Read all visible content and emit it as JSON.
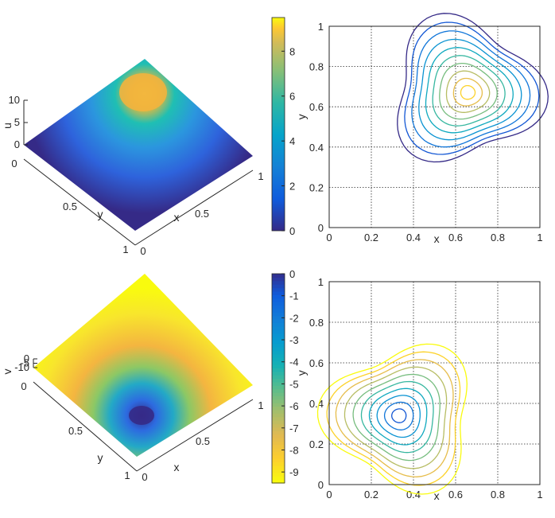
{
  "chart_data": [
    {
      "type": "surface",
      "zlabel": "u",
      "xlabel": "x",
      "ylabel": "y",
      "zticks": [
        "10",
        "5",
        "0"
      ],
      "xticks": [
        "0",
        "0.5",
        "1"
      ],
      "yticks": [
        "0",
        "0.5",
        "1"
      ],
      "xlim": [
        0,
        1
      ],
      "ylim": [
        0,
        1
      ],
      "zlim": [
        0,
        10
      ],
      "peak": {
        "x": 0.67,
        "y": 0.67,
        "value": 9.5
      },
      "colormap": "parula"
    },
    {
      "type": "colorbar",
      "ticks": [
        "0",
        "2",
        "4",
        "6",
        "8"
      ],
      "tick_values": [
        0,
        2,
        4,
        6,
        8
      ],
      "range": [
        0,
        9.5
      ]
    },
    {
      "type": "contour",
      "xlabel": "x",
      "ylabel": "y",
      "xticks": [
        "0",
        "0.2",
        "0.4",
        "0.6",
        "0.8",
        "1"
      ],
      "yticks": [
        "0",
        "0.2",
        "0.4",
        "0.6",
        "0.8",
        "1"
      ],
      "xlim": [
        0,
        1
      ],
      "ylim": [
        0,
        1
      ],
      "grid": true,
      "center": {
        "x": 0.66,
        "y": 0.67
      },
      "levels": 10,
      "outer_extent": 0.34
    },
    {
      "type": "surface",
      "zlabel": "v",
      "xlabel": "x",
      "ylabel": "y",
      "zticks": [
        "0",
        "-5",
        "-10"
      ],
      "xticks": [
        "0",
        "0.5",
        "1"
      ],
      "yticks": [
        "0",
        "0.5",
        "1"
      ],
      "xlim": [
        0,
        1
      ],
      "ylim": [
        0,
        1
      ],
      "zlim": [
        -10,
        0
      ],
      "trough": {
        "x": 0.33,
        "y": 0.33,
        "value": -9.5
      },
      "colormap": "parula"
    },
    {
      "type": "colorbar",
      "ticks": [
        "0",
        "-1",
        "-2",
        "-3",
        "-4",
        "-5",
        "-6",
        "-7",
        "-8",
        "-9"
      ],
      "tick_values": [
        0,
        -1,
        -2,
        -3,
        -4,
        -5,
        -6,
        -7,
        -8,
        -9
      ],
      "range": [
        -9.5,
        0
      ]
    },
    {
      "type": "contour",
      "xlabel": "x",
      "ylabel": "y",
      "xticks": [
        "0",
        "0.2",
        "0.4",
        "0.6",
        "0.8",
        "1"
      ],
      "yticks": [
        "0",
        "0.2",
        "0.4",
        "0.6",
        "0.8",
        "1"
      ],
      "xlim": [
        0,
        1
      ],
      "ylim": [
        0,
        1
      ],
      "grid": true,
      "center": {
        "x": 0.33,
        "y": 0.34
      },
      "levels": 10,
      "outer_extent": 0.34
    }
  ]
}
